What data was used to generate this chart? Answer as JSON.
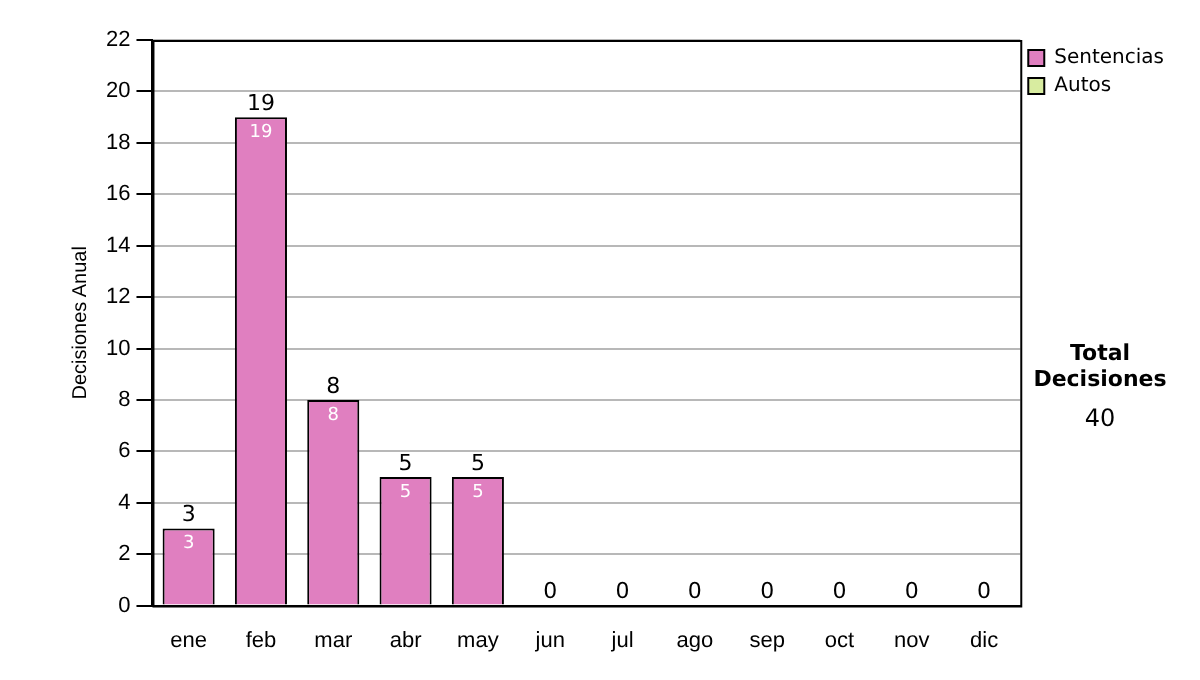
{
  "chart_data": {
    "type": "bar",
    "stacked": true,
    "ylabel": "Decisiones Anual",
    "categories": [
      "ene",
      "feb",
      "mar",
      "abr",
      "may",
      "jun",
      "jul",
      "ago",
      "sep",
      "oct",
      "nov",
      "dic"
    ],
    "series": [
      {
        "name": "Sentencias",
        "color": "#e07fc0",
        "values": [
          3,
          19,
          8,
          5,
          5,
          0,
          0,
          0,
          0,
          0,
          0,
          0
        ],
        "value_labels": [
          "3",
          "19",
          "8",
          "5",
          "5",
          null,
          null,
          null,
          null,
          null,
          null,
          null
        ]
      },
      {
        "name": "Autos",
        "color": "#d8eca0",
        "values": [
          0,
          0,
          0,
          0,
          0,
          0,
          0,
          0,
          0,
          0,
          0,
          0
        ]
      }
    ],
    "totals": [
      "3",
      "19",
      "8",
      "5",
      "5",
      "0",
      "0",
      "0",
      "0",
      "0",
      "0",
      "0"
    ],
    "ylim": [
      0,
      22
    ],
    "yticks": [
      0,
      2,
      4,
      6,
      8,
      10,
      12,
      14,
      16,
      18,
      20,
      22
    ],
    "grid": "y",
    "legend": "right",
    "annotations": [
      "Total Decisiones",
      "40"
    ]
  }
}
